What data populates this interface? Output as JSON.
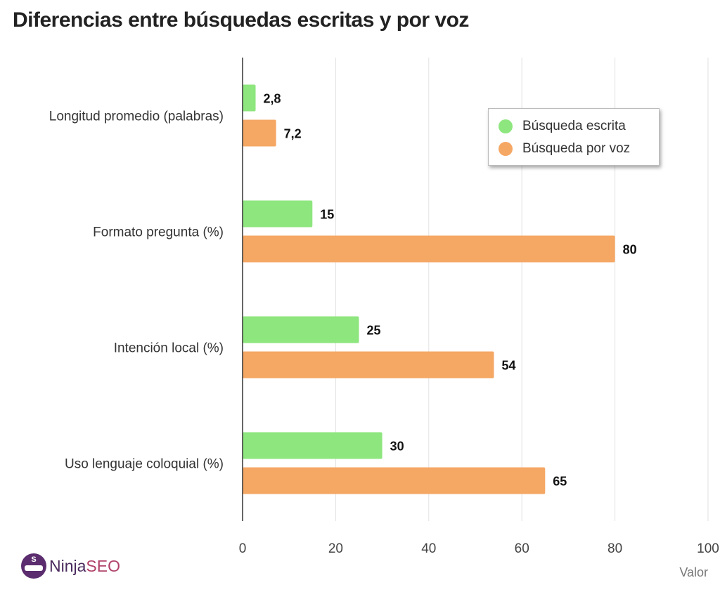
{
  "title": "Diferencias entre búsquedas escritas y por voz",
  "logo": {
    "text_main": "Ninja",
    "text_accent": "SEO",
    "badge_letter": "S"
  },
  "chart_data": {
    "type": "bar",
    "orientation": "horizontal",
    "title": "Diferencias entre búsquedas escritas y por voz",
    "categories": [
      "Longitud promedio (palabras)",
      "Formato pregunta (%)",
      "Intención local (%)",
      "Uso lenguaje coloquial (%)"
    ],
    "series": [
      {
        "name": "Búsqueda escrita",
        "color": "#8ee67e",
        "values": [
          2.8,
          15,
          25,
          30
        ]
      },
      {
        "name": "Búsqueda por voz",
        "color": "#f5a764",
        "values": [
          7.2,
          80,
          54,
          65
        ]
      }
    ],
    "xlabel": "Valor",
    "ylabel": "",
    "xlim": [
      0,
      100
    ],
    "xticks": [
      0,
      20,
      40,
      60,
      80,
      100
    ],
    "grid": true,
    "legend_position": "top-right",
    "data_labels": true
  }
}
